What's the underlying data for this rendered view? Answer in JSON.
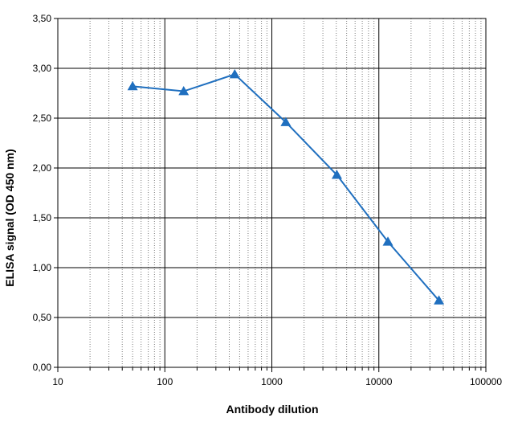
{
  "chart_data": {
    "type": "line",
    "title": "",
    "xlabel": "Antibody dilution",
    "ylabel": "ELISA signal (OD 450 nm)",
    "x_scale": "log",
    "xlim": [
      10,
      100000
    ],
    "ylim": [
      0,
      3.5
    ],
    "x_ticks": [
      10,
      100,
      1000,
      10000,
      100000
    ],
    "x_tick_labels": [
      "10",
      "100",
      "1000",
      "10000",
      "100000"
    ],
    "y_ticks": [
      0,
      0.5,
      1.0,
      1.5,
      2.0,
      2.5,
      3.0,
      3.5
    ],
    "y_tick_labels": [
      "0,00",
      "0,50",
      "1,00",
      "1,50",
      "2,00",
      "2,50",
      "3,00",
      "3,50"
    ],
    "grid": true,
    "minor_grid": true,
    "legend": "none",
    "series": [
      {
        "marker": "triangle",
        "color": "#1f6fbf",
        "x": [
          50,
          150,
          450,
          1350,
          4050,
          12150,
          36450
        ],
        "y": [
          2.82,
          2.77,
          2.94,
          2.46,
          1.93,
          1.26,
          0.67
        ]
      }
    ]
  },
  "colors": {
    "series": "#1f6fbf",
    "major_grid": "#000000",
    "minor_grid": "#7a7a7a",
    "text": "#000000"
  }
}
